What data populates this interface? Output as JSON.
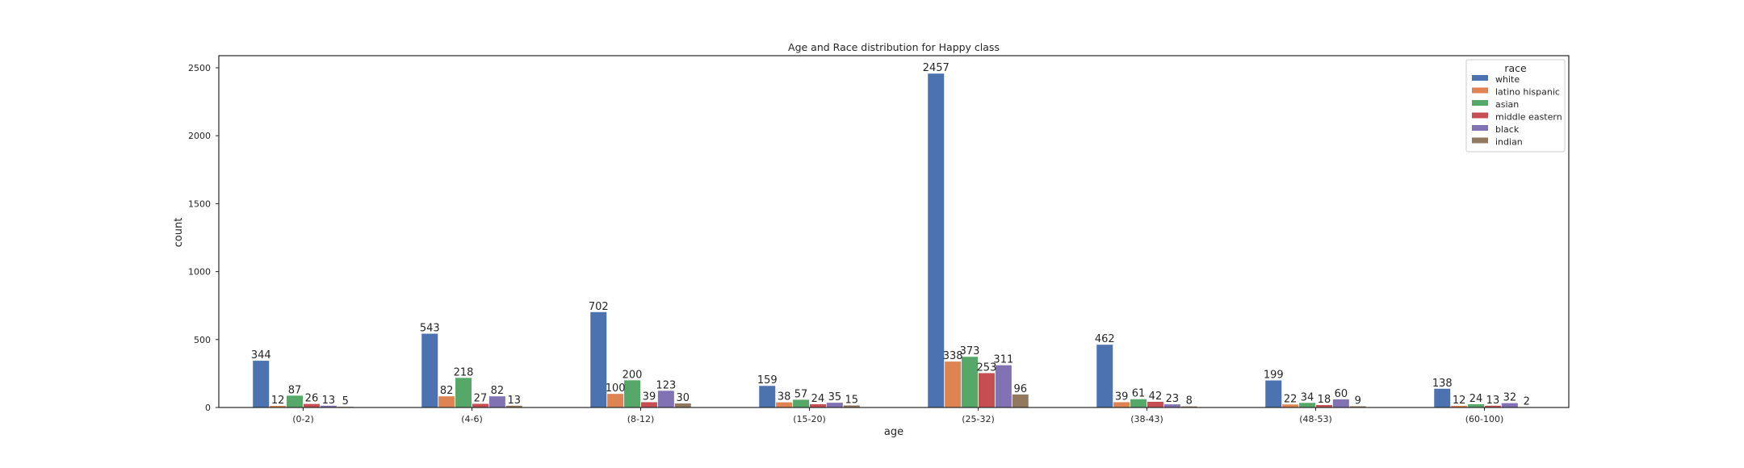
{
  "chart_data": {
    "type": "bar",
    "title": "Age and Race distribution for Happy class",
    "xlabel": "age",
    "ylabel": "count",
    "ylim": [
      0,
      2600
    ],
    "yticks": [
      0,
      500,
      1000,
      1500,
      2000,
      2500
    ],
    "grid": false,
    "legend": {
      "title": "race",
      "placement": "top-right"
    },
    "categories": [
      "(0-2)",
      "(4-6)",
      "(8-12)",
      "(15-20)",
      "(25-32)",
      "(38-43)",
      "(48-53)",
      "(60-100)"
    ],
    "series": [
      {
        "name": "white",
        "color": "#4c72b0",
        "values": [
          344,
          543,
          702,
          159,
          2457,
          462,
          199,
          138
        ]
      },
      {
        "name": "latino hispanic",
        "color": "#dd8452",
        "values": [
          12,
          82,
          100,
          38,
          338,
          39,
          22,
          12
        ]
      },
      {
        "name": "asian",
        "color": "#55a868",
        "values": [
          87,
          218,
          200,
          57,
          373,
          61,
          34,
          24
        ]
      },
      {
        "name": "middle eastern",
        "color": "#c44e52",
        "values": [
          26,
          27,
          39,
          24,
          253,
          42,
          18,
          13
        ]
      },
      {
        "name": "black",
        "color": "#8172b3",
        "values": [
          13,
          82,
          123,
          35,
          311,
          23,
          60,
          32
        ]
      },
      {
        "name": "indian",
        "color": "#937860",
        "values": [
          5,
          13,
          30,
          15,
          96,
          8,
          9,
          2
        ]
      }
    ]
  }
}
